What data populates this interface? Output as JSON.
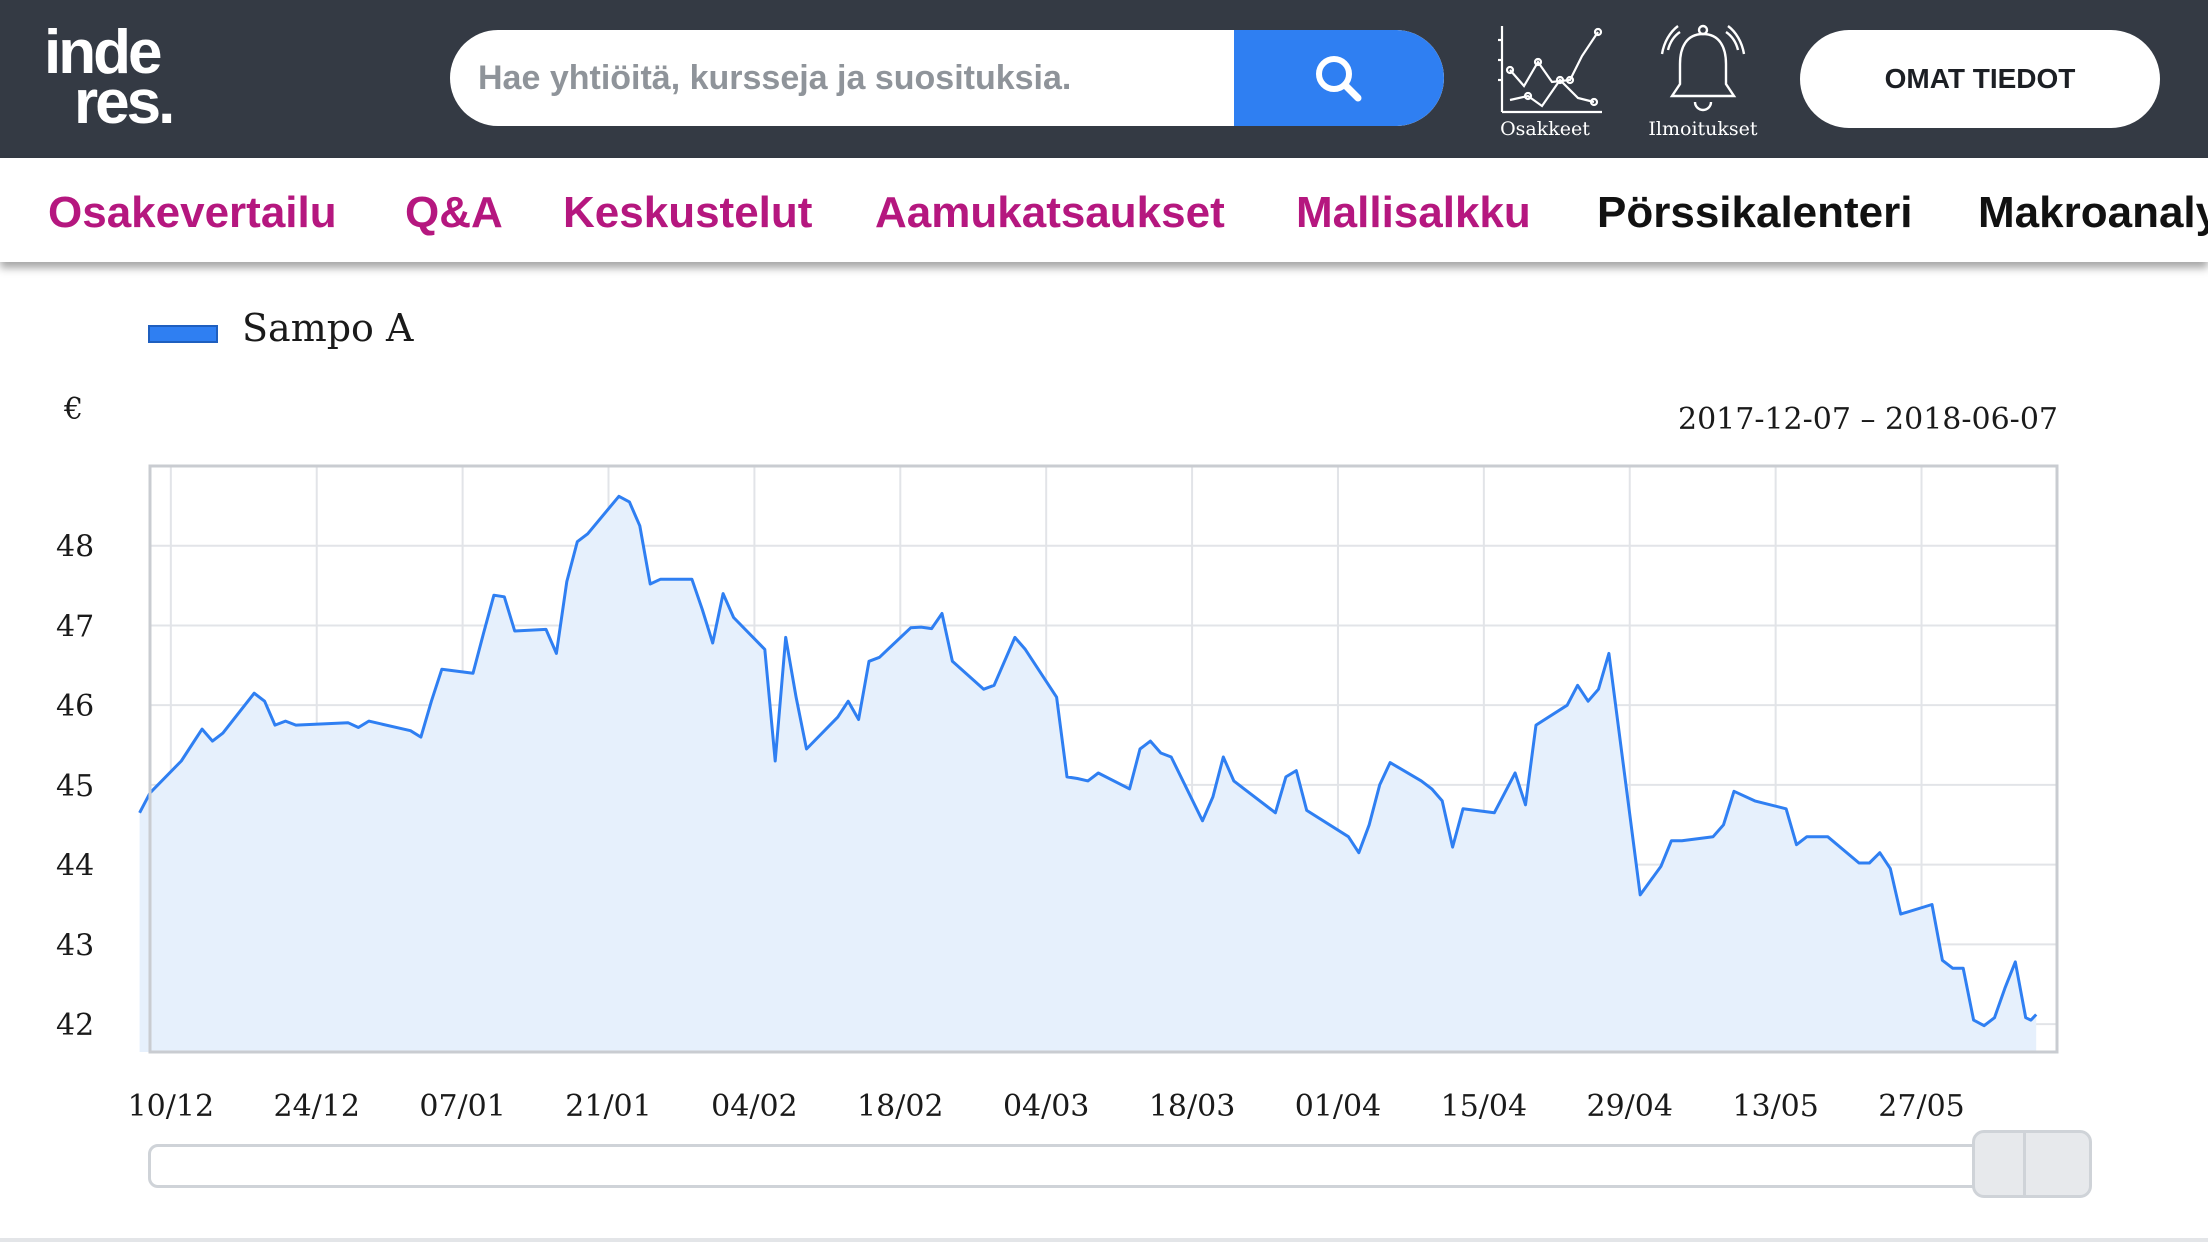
{
  "colors": {
    "topbar_bg": "#343a44",
    "accent_blue": "#2f7ff2",
    "nav_magenta": "#b5177f",
    "nav_black": "#111111",
    "area_fill": "#e6f0fc"
  },
  "header": {
    "logo_line1": "inde",
    "logo_line2": "res.",
    "search_placeholder": "Hae yhtiöitä, kursseja ja suosituksia.",
    "search_icon": "search-icon",
    "osakkeet_label": "Osakkeet",
    "osakkeet_icon": "stock-chart-icon",
    "ilmoitukset_label": "Ilmoitukset",
    "ilmoitukset_icon": "bell-icon",
    "omat_tiedot_label": "OMAT TIEDOT"
  },
  "nav": {
    "items": [
      {
        "label": "Osakevertailu",
        "color": "#b5177f"
      },
      {
        "label": "Q&A",
        "color": "#b5177f"
      },
      {
        "label": "Keskustelut",
        "color": "#b5177f"
      },
      {
        "label": "Aamukatsaukset",
        "color": "#b5177f"
      },
      {
        "label": "Mallisalkku",
        "color": "#b5177f"
      },
      {
        "label": "Pörssikalenteri",
        "color": "#111111"
      },
      {
        "label": "Makroanalyysi",
        "color": "#111111"
      }
    ]
  },
  "chart_data": {
    "type": "area",
    "series": [
      {
        "name": "Sampo A",
        "points": [
          [
            "2017-12-07",
            44.65
          ],
          [
            "2017-12-08",
            44.9
          ],
          [
            "2017-12-11",
            45.3
          ],
          [
            "2017-12-12",
            45.5
          ],
          [
            "2017-12-13",
            45.7
          ],
          [
            "2017-12-14",
            45.55
          ],
          [
            "2017-12-15",
            45.65
          ],
          [
            "2017-12-18",
            46.15
          ],
          [
            "2017-12-19",
            46.05
          ],
          [
            "2017-12-20",
            45.75
          ],
          [
            "2017-12-21",
            45.8
          ],
          [
            "2017-12-22",
            45.75
          ],
          [
            "2017-12-27",
            45.78
          ],
          [
            "2017-12-28",
            45.72
          ],
          [
            "2017-12-29",
            45.8
          ],
          [
            "2018-01-02",
            45.68
          ],
          [
            "2018-01-03",
            45.6
          ],
          [
            "2018-01-04",
            46.05
          ],
          [
            "2018-01-05",
            46.45
          ],
          [
            "2018-01-08",
            46.4
          ],
          [
            "2018-01-09",
            46.9
          ],
          [
            "2018-01-10",
            47.38
          ],
          [
            "2018-01-11",
            47.36
          ],
          [
            "2018-01-12",
            46.93
          ],
          [
            "2018-01-15",
            46.95
          ],
          [
            "2018-01-16",
            46.65
          ],
          [
            "2018-01-17",
            47.55
          ],
          [
            "2018-01-18",
            48.05
          ],
          [
            "2018-01-19",
            48.15
          ],
          [
            "2018-01-22",
            48.62
          ],
          [
            "2018-01-23",
            48.55
          ],
          [
            "2018-01-24",
            48.25
          ],
          [
            "2018-01-25",
            47.52
          ],
          [
            "2018-01-26",
            47.58
          ],
          [
            "2018-01-29",
            47.58
          ],
          [
            "2018-01-30",
            47.2
          ],
          [
            "2018-01-31",
            46.78
          ],
          [
            "2018-02-01",
            47.4
          ],
          [
            "2018-02-02",
            47.1
          ],
          [
            "2018-02-05",
            46.7
          ],
          [
            "2018-02-06",
            45.3
          ],
          [
            "2018-02-07",
            46.85
          ],
          [
            "2018-02-08",
            46.1
          ],
          [
            "2018-02-09",
            45.45
          ],
          [
            "2018-02-12",
            45.85
          ],
          [
            "2018-02-13",
            46.05
          ],
          [
            "2018-02-14",
            45.82
          ],
          [
            "2018-02-15",
            46.55
          ],
          [
            "2018-02-16",
            46.6
          ],
          [
            "2018-02-19",
            46.97
          ],
          [
            "2018-02-20",
            46.98
          ],
          [
            "2018-02-21",
            46.96
          ],
          [
            "2018-02-22",
            47.15
          ],
          [
            "2018-02-23",
            46.55
          ],
          [
            "2018-02-26",
            46.2
          ],
          [
            "2018-02-27",
            46.25
          ],
          [
            "2018-03-01",
            46.85
          ],
          [
            "2018-03-02",
            46.7
          ],
          [
            "2018-03-05",
            46.1
          ],
          [
            "2018-03-06",
            45.1
          ],
          [
            "2018-03-07",
            45.08
          ],
          [
            "2018-03-08",
            45.05
          ],
          [
            "2018-03-09",
            45.15
          ],
          [
            "2018-03-12",
            44.95
          ],
          [
            "2018-03-13",
            45.45
          ],
          [
            "2018-03-14",
            45.55
          ],
          [
            "2018-03-15",
            45.4
          ],
          [
            "2018-03-16",
            45.35
          ],
          [
            "2018-03-19",
            44.55
          ],
          [
            "2018-03-20",
            44.85
          ],
          [
            "2018-03-21",
            45.35
          ],
          [
            "2018-03-22",
            45.05
          ],
          [
            "2018-03-23",
            44.95
          ],
          [
            "2018-03-26",
            44.65
          ],
          [
            "2018-03-27",
            45.1
          ],
          [
            "2018-03-28",
            45.18
          ],
          [
            "2018-03-29",
            44.68
          ],
          [
            "2018-04-02",
            44.35
          ],
          [
            "2018-04-03",
            44.15
          ],
          [
            "2018-04-04",
            44.5
          ],
          [
            "2018-04-05",
            45.0
          ],
          [
            "2018-04-06",
            45.28
          ],
          [
            "2018-04-09",
            45.05
          ],
          [
            "2018-04-10",
            44.95
          ],
          [
            "2018-04-11",
            44.8
          ],
          [
            "2018-04-12",
            44.22
          ],
          [
            "2018-04-13",
            44.7
          ],
          [
            "2018-04-16",
            44.65
          ],
          [
            "2018-04-17",
            44.9
          ],
          [
            "2018-04-18",
            45.15
          ],
          [
            "2018-04-19",
            44.75
          ],
          [
            "2018-04-20",
            45.75
          ],
          [
            "2018-04-23",
            46.0
          ],
          [
            "2018-04-24",
            46.25
          ],
          [
            "2018-04-25",
            46.05
          ],
          [
            "2018-04-26",
            46.2
          ],
          [
            "2018-04-27",
            46.65
          ],
          [
            "2018-04-30",
            43.62
          ],
          [
            "2018-05-02",
            43.98
          ],
          [
            "2018-05-03",
            44.3
          ],
          [
            "2018-05-04",
            44.3
          ],
          [
            "2018-05-07",
            44.35
          ],
          [
            "2018-05-08",
            44.5
          ],
          [
            "2018-05-09",
            44.92
          ],
          [
            "2018-05-11",
            44.8
          ],
          [
            "2018-05-14",
            44.7
          ],
          [
            "2018-05-15",
            44.25
          ],
          [
            "2018-05-16",
            44.35
          ],
          [
            "2018-05-18",
            44.35
          ],
          [
            "2018-05-21",
            44.02
          ],
          [
            "2018-05-22",
            44.02
          ],
          [
            "2018-05-23",
            44.15
          ],
          [
            "2018-05-24",
            43.95
          ],
          [
            "2018-05-25",
            43.38
          ],
          [
            "2018-05-28",
            43.5
          ],
          [
            "2018-05-29",
            42.8
          ],
          [
            "2018-05-30",
            42.7
          ],
          [
            "2018-05-31",
            42.7
          ],
          [
            "2018-06-01",
            42.05
          ],
          [
            "2018-06-02",
            41.98
          ],
          [
            "2018-06-03",
            42.08
          ],
          [
            "2018-06-04",
            42.45
          ],
          [
            "2018-06-05",
            42.78
          ],
          [
            "2018-06-06",
            42.08
          ],
          [
            "2018-06-06T12:00",
            42.05
          ],
          [
            "2018-06-07",
            42.12
          ]
        ]
      }
    ],
    "yunit": "€",
    "date_range": "2017-12-07 – 2018-06-07",
    "xlim": [
      "2017-12-08",
      "2018-06-09"
    ],
    "ylim": [
      41.65,
      49.0
    ],
    "yticks": [
      42,
      43,
      44,
      45,
      46,
      47,
      48
    ],
    "xtick_dates": [
      "2017-12-10",
      "2017-12-24",
      "2018-01-07",
      "2018-01-21",
      "2018-02-04",
      "2018-02-18",
      "2018-03-04",
      "2018-03-18",
      "2018-04-01",
      "2018-04-15",
      "2018-04-29",
      "2018-05-13",
      "2018-05-27"
    ],
    "xtick_labels": [
      "10/12",
      "24/12",
      "07/01",
      "21/01",
      "04/02",
      "18/02",
      "04/03",
      "18/03",
      "01/04",
      "15/04",
      "29/04",
      "13/05",
      "27/05"
    ],
    "legend": "top-left",
    "grid": true
  }
}
